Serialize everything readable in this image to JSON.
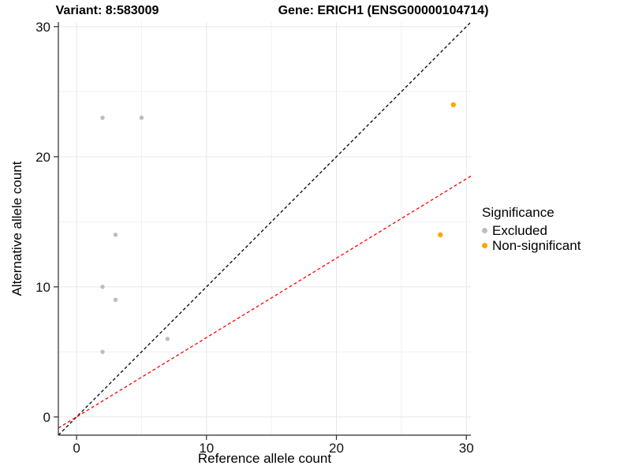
{
  "chart_data": {
    "type": "scatter",
    "title_left": "Variant: 8:583009",
    "title_right": "Gene: ERICH1 (ENSG00000104714)",
    "xlabel": "Reference allele count",
    "ylabel": "Alternative allele count",
    "xlim": [
      -1.4,
      30.35
    ],
    "ylim": [
      -1.4,
      30.35
    ],
    "x_ticks": [
      0,
      10,
      20,
      30
    ],
    "y_ticks": [
      0,
      10,
      20,
      30
    ],
    "x_minor_ticks": [
      5,
      15,
      25
    ],
    "y_minor_ticks": [
      5,
      15,
      25
    ],
    "grid": "major+minor",
    "legend_position": "right",
    "series": [
      {
        "name": "Excluded",
        "color": "#bdbdbd",
        "marker_radius": 2.7,
        "points": [
          [
            2,
            23
          ],
          [
            5,
            23
          ],
          [
            3,
            14
          ],
          [
            2,
            10
          ],
          [
            3,
            9
          ],
          [
            7,
            6
          ],
          [
            2,
            5
          ]
        ]
      },
      {
        "name": "Non-significant",
        "color": "#ffa500",
        "marker_radius": 3.2,
        "points": [
          [
            29,
            24
          ],
          [
            28,
            14
          ]
        ]
      }
    ],
    "lines": [
      {
        "name": "identity-line",
        "slope": 1,
        "intercept": 0,
        "color": "#000000",
        "dash": "4,3"
      },
      {
        "name": "expected-ratio-line",
        "slope": 0.61,
        "intercept": 0,
        "color": "#ff0000",
        "dash": "4,3"
      }
    ],
    "legend": {
      "title": "Significance",
      "items": [
        {
          "label": "Excluded",
          "color": "#bdbdbd"
        },
        {
          "label": "Non-significant",
          "color": "#ffa500"
        }
      ]
    },
    "colors": {
      "background": "#ffffff",
      "grid_major": "#e7e7e7",
      "grid_minor": "#f0f0f0",
      "axis": "#2b2b2b",
      "tick_text": "#111111"
    }
  }
}
